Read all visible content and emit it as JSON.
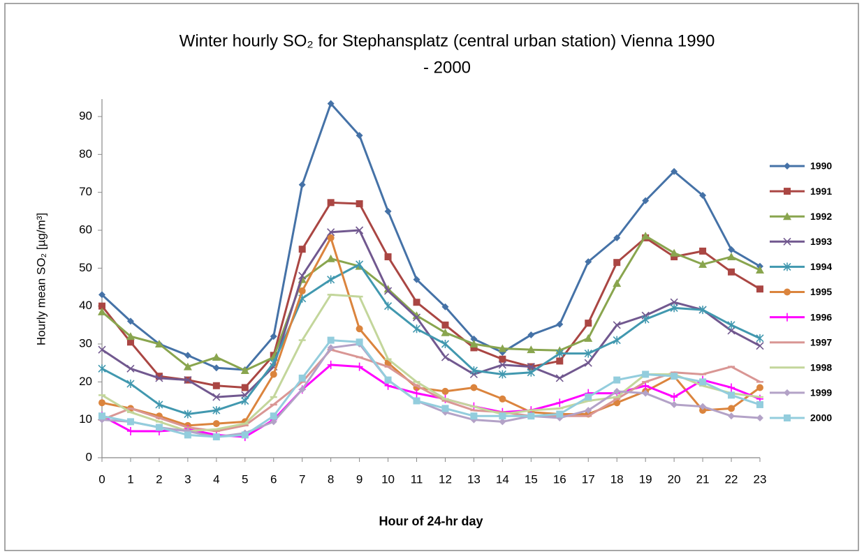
{
  "chart_data": {
    "type": "line",
    "title": "Winter hourly SO₂ for Stephansplatz  (central urban station) Vienna 1990",
    "subtitle": "- 2000",
    "y_label": "Hourly mean SO₂ [µg/m³]",
    "x_label": "Hour of 24-hr day",
    "x": [
      0,
      1,
      2,
      3,
      4,
      5,
      6,
      7,
      8,
      9,
      10,
      11,
      12,
      13,
      14,
      15,
      16,
      17,
      18,
      19,
      20,
      21,
      22,
      23
    ],
    "xlim": [
      0,
      23
    ],
    "xticks": [
      0,
      1,
      2,
      3,
      4,
      5,
      6,
      7,
      8,
      9,
      10,
      11,
      12,
      13,
      14,
      15,
      16,
      17,
      18,
      19,
      20,
      21,
      22,
      23
    ],
    "ylim": [
      0,
      90
    ],
    "yticks": [
      0,
      10,
      20,
      30,
      40,
      50,
      60,
      70,
      80,
      90
    ],
    "grid": false,
    "legend": "right",
    "series": [
      {
        "name": "1990",
        "color": "#4572a7",
        "marker": "diamond",
        "values": [
          43,
          36,
          30,
          27,
          23.7,
          23.2,
          32,
          72,
          93.4,
          85,
          65,
          47,
          39.8,
          31.3,
          27.8,
          32.4,
          35.2,
          51.7,
          58,
          67.8,
          75.5,
          69.2,
          54.9,
          50.5
        ]
      },
      {
        "name": "1991",
        "color": "#aa4643",
        "marker": "square",
        "values": [
          40,
          30.5,
          21.5,
          20.5,
          19,
          18.5,
          27,
          55,
          67.3,
          67,
          53,
          41,
          35,
          29,
          26,
          24,
          25.5,
          35.5,
          51.5,
          58,
          53,
          54.5,
          49,
          44.5
        ]
      },
      {
        "name": "1992",
        "color": "#89a54e",
        "marker": "triangle",
        "values": [
          38.5,
          32,
          30,
          24,
          26.5,
          23,
          26.5,
          47,
          52.5,
          50.5,
          44.5,
          37.5,
          33,
          30,
          28.8,
          28.5,
          28.3,
          31.5,
          46,
          58.5,
          54,
          51,
          53,
          49.5
        ]
      },
      {
        "name": "1993",
        "color": "#71588f",
        "marker": "x",
        "values": [
          28.5,
          23.5,
          21,
          20.5,
          16,
          16.5,
          24,
          48,
          59.5,
          60,
          44,
          37,
          26.5,
          22,
          24.5,
          24,
          21,
          25,
          35,
          37.5,
          41,
          39,
          33.5,
          29.5
        ]
      },
      {
        "name": "1994",
        "color": "#4198af",
        "marker": "star",
        "values": [
          23.5,
          19.5,
          14,
          11.5,
          12.5,
          15,
          25,
          42,
          47,
          51,
          40,
          34,
          30,
          23,
          22,
          22.5,
          27.5,
          27.5,
          31,
          36.5,
          39.5,
          39,
          35,
          31.5
        ]
      },
      {
        "name": "1995",
        "color": "#db843d",
        "marker": "circle",
        "values": [
          14.5,
          13,
          11,
          8.5,
          9,
          9.5,
          22,
          44,
          58,
          34,
          25,
          18.5,
          17.5,
          18.5,
          15.5,
          12,
          11.5,
          11.5,
          14.5,
          17.5,
          21.5,
          12.5,
          13,
          18.5
        ]
      },
      {
        "name": "1996",
        "color": "#ff00ff",
        "marker": "plus",
        "values": [
          11,
          7,
          7,
          7.5,
          6,
          5.5,
          10,
          18,
          24.5,
          24,
          19,
          17,
          15.5,
          13.5,
          12,
          12.5,
          14.5,
          17,
          17,
          19,
          16,
          20.5,
          18.5,
          15.5
        ]
      },
      {
        "name": "1997",
        "color": "#d99694",
        "marker": "dash",
        "values": [
          10,
          13,
          10.5,
          8,
          7,
          8.5,
          14,
          20,
          28.5,
          26.5,
          24,
          19,
          15,
          12.5,
          12,
          11,
          11,
          11,
          15.5,
          20,
          22.5,
          22,
          24,
          20
        ]
      },
      {
        "name": "1998",
        "color": "#c3d69b",
        "marker": "dash",
        "values": [
          16.5,
          12,
          9.5,
          7,
          7.5,
          9,
          16,
          31,
          43,
          42.5,
          26,
          20,
          15.5,
          13.5,
          11.5,
          12.5,
          13,
          15,
          16,
          22,
          22,
          19,
          17,
          16
        ]
      },
      {
        "name": "1999",
        "color": "#b3a2c7",
        "marker": "diamond",
        "values": [
          10,
          9.5,
          8,
          7,
          5.5,
          6.5,
          9.5,
          18,
          29,
          30,
          20.5,
          15,
          12,
          10,
          9.5,
          11,
          10.5,
          12.5,
          17.5,
          17,
          14,
          13.5,
          11,
          10.5
        ]
      },
      {
        "name": "2000",
        "color": "#93cddd",
        "marker": "square",
        "values": [
          11,
          9.5,
          8,
          6,
          5.5,
          6,
          11,
          21,
          31,
          30.5,
          20.5,
          15,
          13,
          11,
          11,
          11,
          11.5,
          16,
          20.5,
          22,
          21.5,
          20,
          16.5,
          14
        ]
      }
    ]
  }
}
